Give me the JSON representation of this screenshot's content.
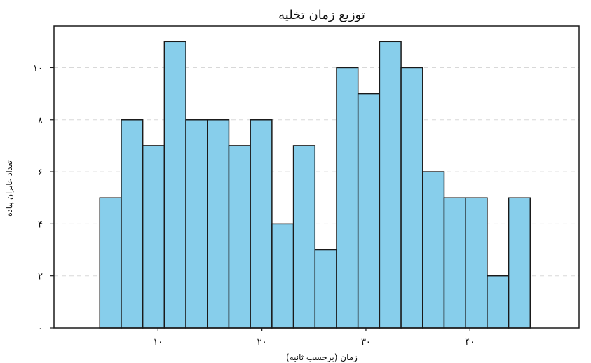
{
  "chart_data": {
    "type": "histogram",
    "title": "توزیع زمان تخلیه",
    "xlabel": "زمان (برحسب ثانیه)",
    "ylabel": "تعداد عابران پیاده",
    "bin_width": 2.07,
    "bin_start": 4.4,
    "values": [
      5,
      8,
      7,
      11,
      8,
      8,
      7,
      8,
      4,
      7,
      3,
      10,
      9,
      11,
      10,
      6,
      5,
      5,
      2,
      5
    ],
    "xlim": [
      0,
      50.5
    ],
    "ylim": [
      0,
      11.6
    ],
    "x_ticks": [
      10,
      20,
      30,
      40
    ],
    "x_tick_labels": [
      "۱۰",
      "۲۰",
      "۳۰",
      "۴۰"
    ],
    "y_ticks": [
      0,
      2,
      4,
      6,
      8,
      10
    ],
    "y_tick_labels": [
      "۰",
      "۲",
      "۴",
      "۶",
      "۸",
      "۱۰"
    ],
    "bar_color": "#87ceeb",
    "edge_color": "#1a1a1a",
    "grid": "horizontal-dashed"
  }
}
